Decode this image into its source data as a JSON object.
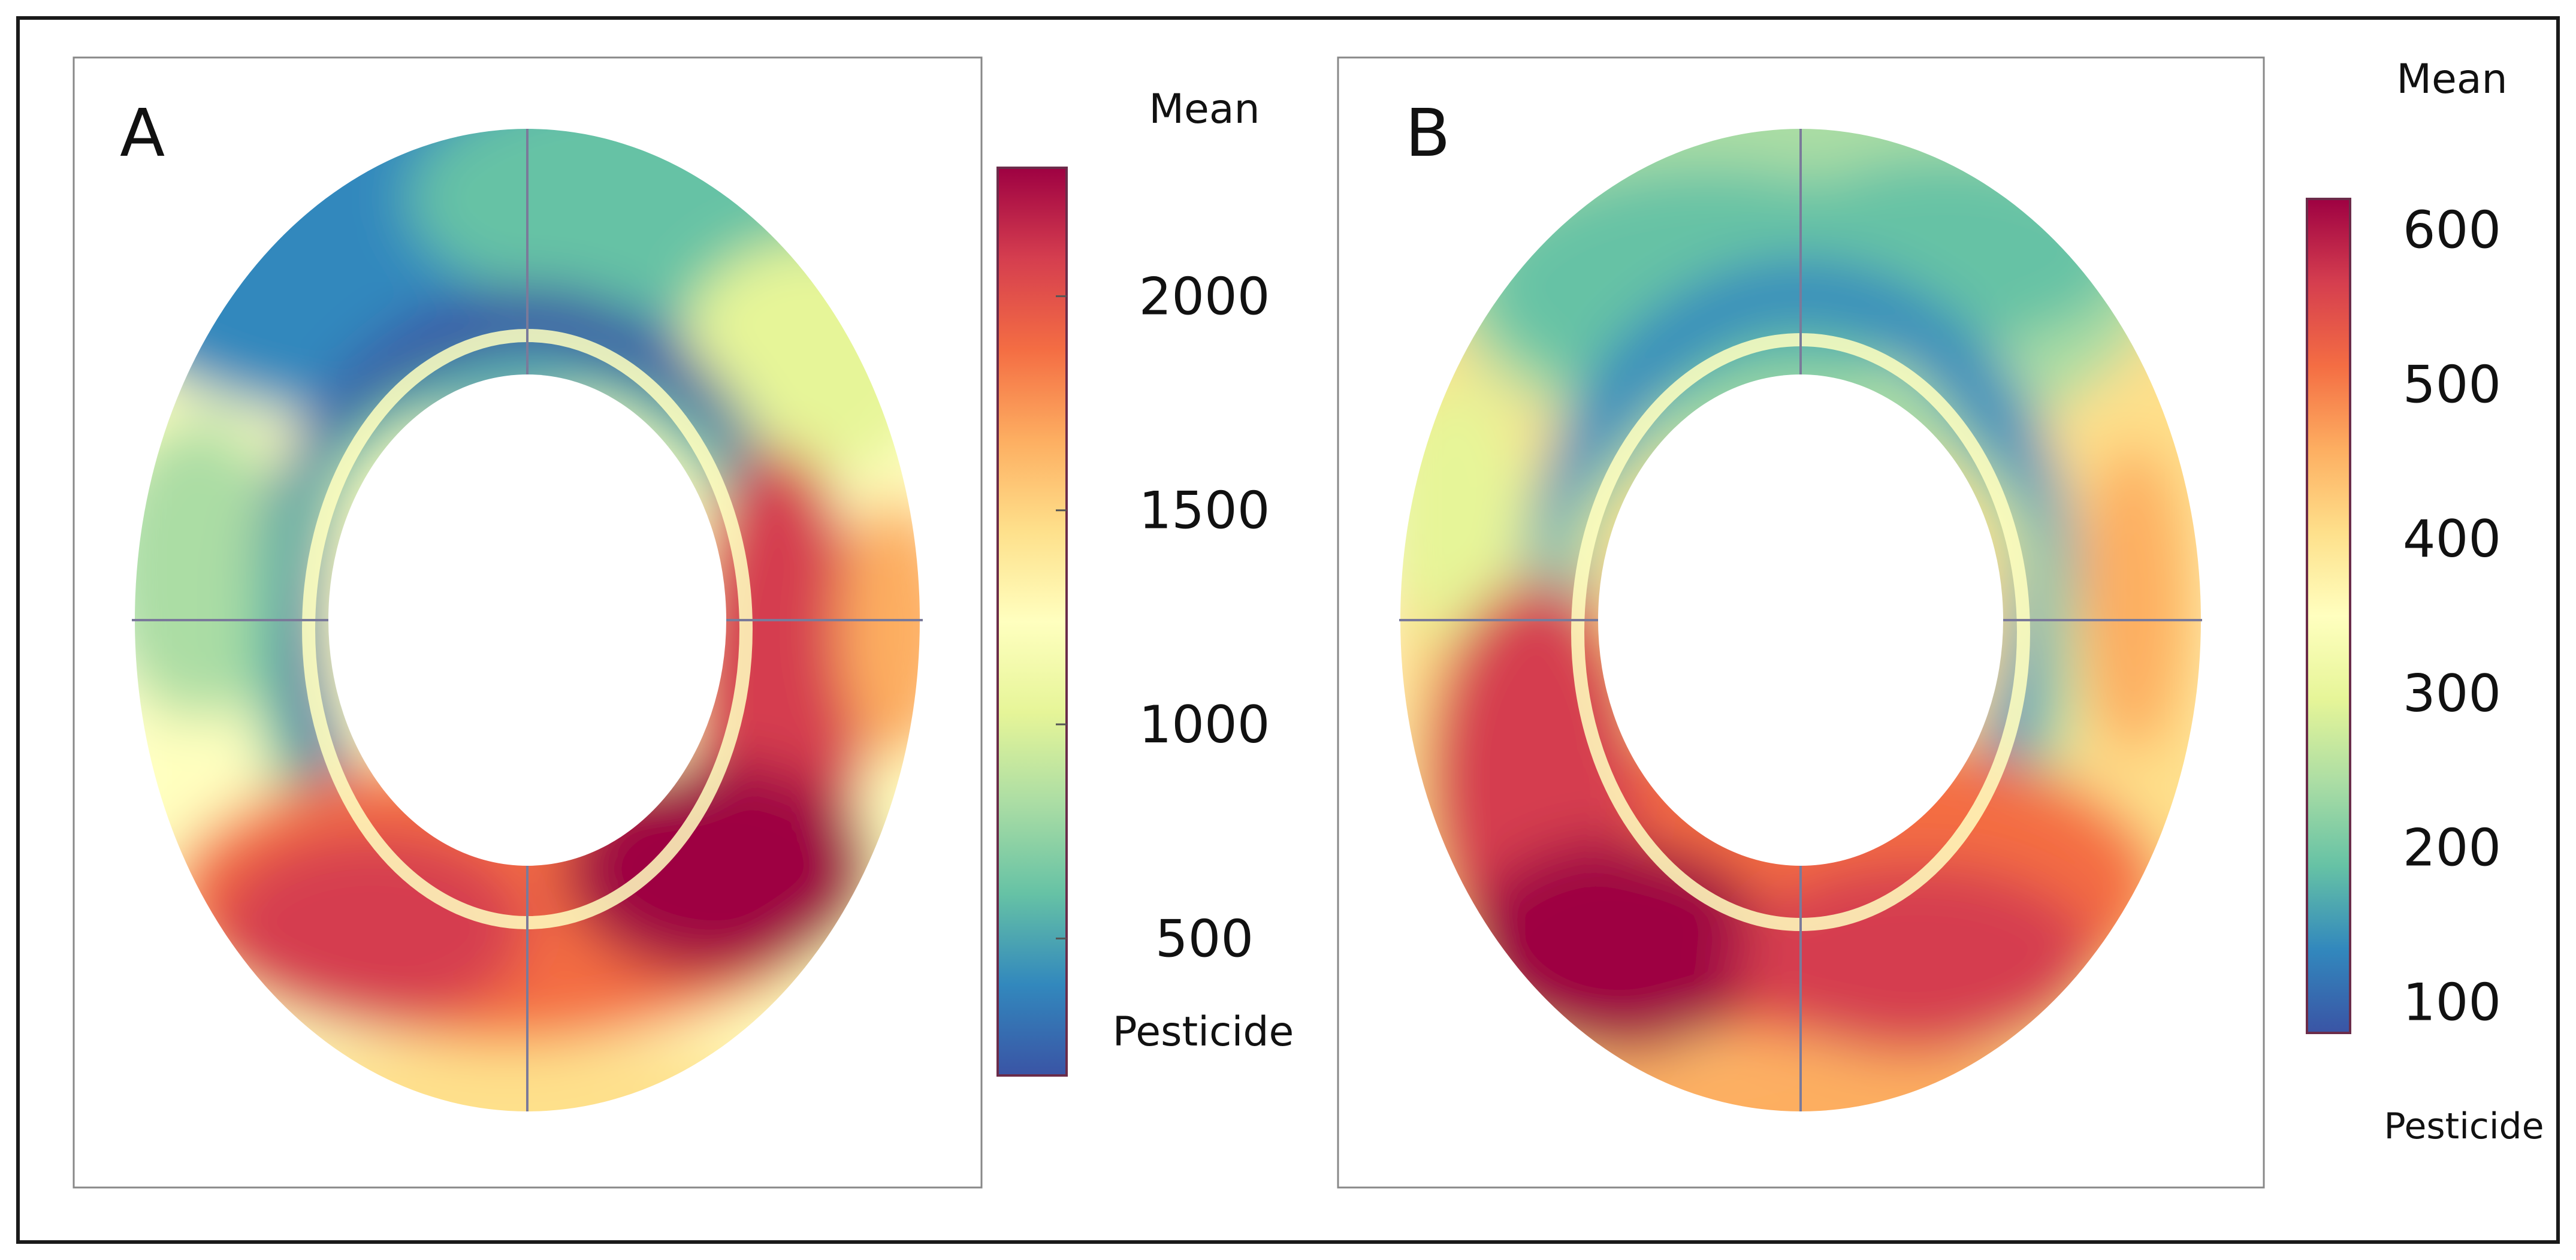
{
  "chart_data": [
    {
      "type": "heatmap",
      "panel_label": "A",
      "colorbar_title": "Mean",
      "colorbar_subtitle": "Pesticide",
      "value_range": [
        180,
        2300
      ],
      "colorbar_ticks": [
        500,
        1000,
        1500,
        2000
      ],
      "colorbar_tick_labels": [
        "500",
        "1000",
        "1500",
        "2000"
      ],
      "shape": "elliptical-ring",
      "description_regions": {
        "inner_rim": 350,
        "upper_outer": 500,
        "mid_band": 1100,
        "lower_outer": 1800,
        "lower_right_peak": 2250,
        "bottom_edge": 1200
      }
    },
    {
      "type": "heatmap",
      "panel_label": "B",
      "colorbar_title": "Mean",
      "colorbar_subtitle": "Pesticide",
      "value_range": [
        80,
        620
      ],
      "colorbar_ticks": [
        100,
        200,
        300,
        400,
        500,
        600
      ],
      "colorbar_tick_labels": [
        "100",
        "200",
        "300",
        "400",
        "500",
        "600"
      ],
      "shape": "elliptical-ring",
      "description_regions": {
        "inner_rim": 170,
        "upper_outer": 260,
        "mid_band": 320,
        "lower_outer": 520,
        "lower_left_peak": 600,
        "bottom_edge": 400
      }
    }
  ],
  "colormap": [
    "#3a54a5",
    "#3288bd",
    "#66c2a5",
    "#abdda4",
    "#e6f598",
    "#ffffbf",
    "#fee08b",
    "#fdae61",
    "#f46d43",
    "#d53e4f",
    "#9e0142"
  ]
}
